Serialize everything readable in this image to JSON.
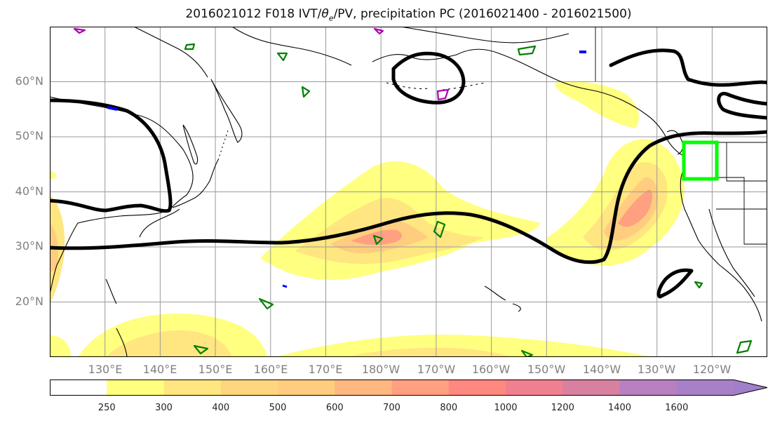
{
  "figure": {
    "title_prefix": "2016021012 F018 IVT/",
    "title_theta": "θ",
    "title_sub": "e",
    "title_suffix": "/PV, precipitation PC (2016021400 - 2016021500)"
  },
  "map": {
    "extent": {
      "lon": [
        120,
        250
      ],
      "lat": [
        10,
        70
      ]
    },
    "lat_ticks": [
      {
        "lat": 60,
        "label": "60°N"
      },
      {
        "lat": 50,
        "label": "50°N"
      },
      {
        "lat": 40,
        "label": "40°N"
      },
      {
        "lat": 30,
        "label": "30°N"
      },
      {
        "lat": 20,
        "label": "20°N"
      }
    ],
    "lon_ticks": [
      {
        "lon": 130,
        "label": "130°E"
      },
      {
        "lon": 140,
        "label": "140°E"
      },
      {
        "lon": 150,
        "label": "150°E"
      },
      {
        "lon": 160,
        "label": "160°E"
      },
      {
        "lon": 170,
        "label": "170°E"
      },
      {
        "lon": 180,
        "label": "180°W"
      },
      {
        "lon": 190,
        "label": "170°W"
      },
      {
        "lon": 200,
        "label": "160°W"
      },
      {
        "lon": 210,
        "label": "150°W"
      },
      {
        "lon": 220,
        "label": "140°W"
      },
      {
        "lon": 230,
        "label": "130°W"
      },
      {
        "lon": 240,
        "label": "120°W"
      }
    ],
    "grid": true,
    "highlight_box": {
      "lon": [
        236.5,
        242.5
      ],
      "lat": [
        42.2,
        48.8
      ],
      "color": "#00ff00"
    },
    "pv_contour_color": "#000000",
    "theta_contour_colors": [
      "#008000",
      "#b000b0",
      "#0000ff"
    ]
  },
  "colorbar": {
    "levels": [
      "250",
      "300",
      "400",
      "500",
      "600",
      "700",
      "800",
      "1000",
      "1200",
      "1400",
      "1600"
    ],
    "colors": [
      "#ffffff",
      "#ffff80",
      "#ffe680",
      "#ffd680",
      "#ffcc80",
      "#ffb880",
      "#ffa080",
      "#ff8880",
      "#f08090",
      "#d880a0",
      "#b880c0",
      "#a880c8",
      "#a080c8"
    ],
    "extend": "max"
  }
}
